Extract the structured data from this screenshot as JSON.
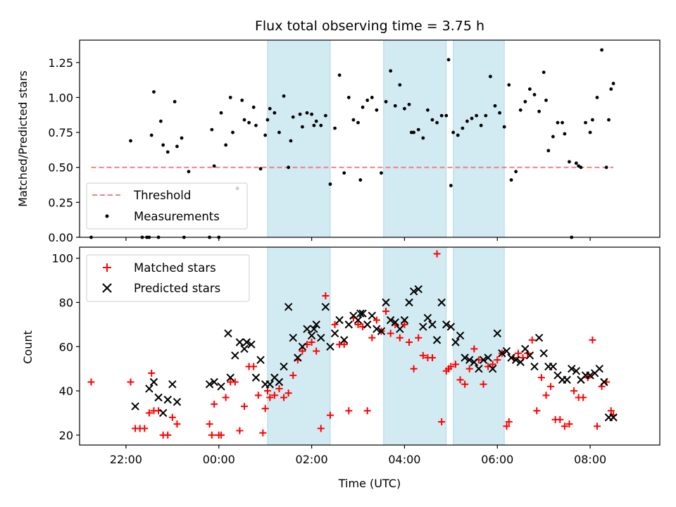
{
  "chart_data": [
    {
      "type": "scatter",
      "title": "Flux total observing time = 3.75 h",
      "xlabel": "",
      "ylabel": "Matched/Predicted stars",
      "xlim": [
        -3.0,
        9.5
      ],
      "ylim": [
        0.0,
        1.41
      ],
      "yticks": [
        0.0,
        0.25,
        0.5,
        0.75,
        1.0,
        1.25
      ],
      "ytick_labels": [
        "0.00",
        "0.25",
        "0.50",
        "0.75",
        "1.00",
        "1.25"
      ],
      "legend": {
        "position": "lower-left",
        "entries": [
          "Threshold",
          "Measurements"
        ]
      },
      "series": [
        {
          "name": "Threshold",
          "style": "dashed-line",
          "color": "#f08080",
          "x": [
            -2.75,
            8.5
          ],
          "values": [
            0.5,
            0.5
          ]
        },
        {
          "name": "Measurements",
          "style": "dot",
          "color": "#000000",
          "x": [
            -2.75,
            -1.9,
            -1.65,
            -1.55,
            -1.5,
            -1.45,
            -1.4,
            -1.3,
            -1.25,
            -1.2,
            -1.1,
            -0.95,
            -0.9,
            -0.8,
            -0.75,
            -0.65,
            -0.2,
            -0.15,
            -0.1,
            0.0,
            0.05,
            0.15,
            0.25,
            0.3,
            0.4,
            0.5,
            0.55,
            0.65,
            0.75,
            0.8,
            0.9,
            1.0,
            1.05,
            1.1,
            1.2,
            1.3,
            1.4,
            1.5,
            1.55,
            1.6,
            1.75,
            1.8,
            1.9,
            2.0,
            2.05,
            2.1,
            2.2,
            2.3,
            2.4,
            2.5,
            2.6,
            2.7,
            2.8,
            2.9,
            3.0,
            3.05,
            3.1,
            3.2,
            3.3,
            3.4,
            3.5,
            3.6,
            3.7,
            3.8,
            3.9,
            4.0,
            4.1,
            4.15,
            4.2,
            4.3,
            4.4,
            4.5,
            4.6,
            4.7,
            4.8,
            4.9,
            4.95,
            5.0,
            5.05,
            5.15,
            5.25,
            5.35,
            5.45,
            5.55,
            5.65,
            5.75,
            5.85,
            5.95,
            6.05,
            6.15,
            6.25,
            6.3,
            6.4,
            6.5,
            6.6,
            6.7,
            6.8,
            6.9,
            7.0,
            7.05,
            7.1,
            7.2,
            7.3,
            7.4,
            7.45,
            7.55,
            7.6,
            7.7,
            7.75,
            7.8,
            7.9,
            8.0,
            8.05,
            8.15,
            8.25,
            8.35,
            8.4,
            8.45,
            8.5
          ],
          "values": [
            0.0,
            0.69,
            0.0,
            0.0,
            0.0,
            0.73,
            1.04,
            0.0,
            0.83,
            0.66,
            0.61,
            0.97,
            0.65,
            0.71,
            0.0,
            0.47,
            0.0,
            0.77,
            0.51,
            0.0,
            0.89,
            0.66,
            1.0,
            0.75,
            0.35,
            0.98,
            0.84,
            0.82,
            0.93,
            0.8,
            0.49,
            0.73,
            0.84,
            0.92,
            0.89,
            0.75,
            1.01,
            0.5,
            0.69,
            0.86,
            0.88,
            0.79,
            0.89,
            0.88,
            0.8,
            0.83,
            0.8,
            0.87,
            0.38,
            0.78,
            1.16,
            0.46,
            1.0,
            0.84,
            0.82,
            0.41,
            0.93,
            0.98,
            1.0,
            0.91,
            0.46,
            0.97,
            1.19,
            0.94,
            1.09,
            0.92,
            0.95,
            0.75,
            0.75,
            0.77,
            0.71,
            0.91,
            0.84,
            0.82,
            0.87,
            0.87,
            1.27,
            0.37,
            0.75,
            0.73,
            0.78,
            0.83,
            0.85,
            0.87,
            0.8,
            0.87,
            1.15,
            0.94,
            0.89,
            0.79,
            1.09,
            0.41,
            0.47,
            0.91,
            0.97,
            1.06,
            1.02,
            0.9,
            1.18,
            0.98,
            0.62,
            0.72,
            0.82,
            0.82,
            0.74,
            0.54,
            0.0,
            0.53,
            0.51,
            0.5,
            0.82,
            0.75,
            0.84,
            1.0,
            1.34,
            0.5,
            0.84,
            1.06,
            1.1
          ]
        }
      ]
    },
    {
      "type": "scatter",
      "title": "",
      "xlabel": "Time (UTC)",
      "ylabel": "Count",
      "xlim": [
        -3.0,
        9.5
      ],
      "ylim": [
        15.5,
        105
      ],
      "xticks": [
        -2.0,
        0.0,
        2.0,
        4.0,
        6.0,
        8.0
      ],
      "xtick_labels": [
        "22:00",
        "00:00",
        "02:00",
        "04:00",
        "06:00",
        "08:00"
      ],
      "yticks": [
        20,
        40,
        60,
        80,
        100
      ],
      "ytick_labels": [
        "20",
        "40",
        "60",
        "80",
        "100"
      ],
      "legend": {
        "position": "top-left",
        "entries": [
          "Matched stars",
          "Predicted stars"
        ]
      },
      "series": [
        {
          "name": "Matched stars",
          "style": "plus",
          "color": "#ff0000",
          "x": [
            -2.75,
            -1.9,
            -1.8,
            -1.7,
            -1.6,
            -1.5,
            -1.45,
            -1.4,
            -1.3,
            -1.2,
            -1.1,
            -1.0,
            -0.9,
            -0.2,
            -0.15,
            -0.1,
            0.0,
            0.05,
            0.15,
            0.25,
            0.35,
            0.45,
            0.55,
            0.65,
            0.75,
            0.85,
            0.95,
            1.0,
            1.05,
            1.1,
            1.2,
            1.3,
            1.4,
            1.5,
            1.6,
            1.7,
            1.8,
            1.9,
            2.0,
            2.1,
            2.2,
            2.3,
            2.4,
            2.5,
            2.6,
            2.7,
            2.8,
            2.9,
            3.0,
            3.1,
            3.2,
            3.3,
            3.4,
            3.5,
            3.6,
            3.7,
            3.8,
            3.9,
            4.0,
            4.1,
            4.2,
            4.3,
            4.4,
            4.5,
            4.6,
            4.7,
            4.8,
            4.9,
            4.95,
            5.0,
            5.1,
            5.2,
            5.3,
            5.4,
            5.5,
            5.6,
            5.7,
            5.8,
            5.9,
            6.0,
            6.1,
            6.2,
            6.25,
            6.35,
            6.45,
            6.55,
            6.65,
            6.75,
            6.85,
            6.95,
            7.05,
            7.15,
            7.25,
            7.35,
            7.45,
            7.55,
            7.65,
            7.75,
            7.85,
            7.95,
            8.05,
            8.15,
            8.25,
            8.35,
            8.45,
            8.5
          ],
          "values": [
            44,
            44,
            23,
            23,
            23,
            30,
            48,
            31,
            31,
            20,
            20,
            28,
            25,
            25,
            20,
            34,
            20,
            20,
            37,
            44,
            44,
            22,
            33,
            51,
            51,
            38,
            21,
            32,
            40,
            37,
            38,
            41,
            37,
            39,
            47,
            54,
            58,
            61,
            62,
            58,
            23,
            83,
            29,
            70,
            61,
            61,
            31,
            73,
            70,
            69,
            31,
            64,
            72,
            67,
            76,
            66,
            70,
            64,
            70,
            62,
            50,
            64,
            56,
            55,
            55,
            102,
            26,
            49,
            50,
            51,
            52,
            45,
            43,
            50,
            59,
            54,
            43,
            51,
            52,
            54,
            57,
            24,
            26,
            55,
            57,
            55,
            57,
            63,
            31,
            46,
            38,
            42,
            27,
            27,
            24,
            25,
            40,
            37,
            37,
            46,
            63,
            24,
            42,
            44,
            31,
            29
          ]
        },
        {
          "name": "Predicted stars",
          "style": "x",
          "color": "#000000",
          "x": [
            -1.8,
            -1.5,
            -1.4,
            -1.3,
            -1.2,
            -1.1,
            -1.0,
            -0.9,
            -0.2,
            -0.1,
            0.05,
            0.2,
            0.25,
            0.35,
            0.45,
            0.55,
            0.6,
            0.7,
            0.8,
            0.9,
            1.0,
            1.1,
            1.2,
            1.3,
            1.4,
            1.5,
            1.6,
            1.7,
            1.8,
            1.9,
            2.0,
            2.05,
            2.1,
            2.2,
            2.3,
            2.4,
            2.5,
            2.6,
            2.7,
            2.8,
            2.9,
            3.0,
            3.05,
            3.1,
            3.2,
            3.3,
            3.4,
            3.5,
            3.6,
            3.7,
            3.8,
            3.9,
            4.0,
            4.1,
            4.2,
            4.3,
            4.4,
            4.5,
            4.6,
            4.7,
            4.8,
            4.9,
            5.0,
            5.1,
            5.2,
            5.3,
            5.4,
            5.5,
            5.6,
            5.7,
            5.8,
            5.9,
            6.0,
            6.1,
            6.2,
            6.3,
            6.4,
            6.5,
            6.6,
            6.7,
            6.8,
            6.9,
            7.0,
            7.1,
            7.2,
            7.3,
            7.4,
            7.5,
            7.6,
            7.7,
            7.8,
            7.9,
            8.0,
            8.1,
            8.2,
            8.3,
            8.4,
            8.5
          ],
          "values": [
            33,
            41,
            44,
            37,
            30,
            36,
            43,
            35,
            43,
            44,
            42,
            66,
            46,
            56,
            62,
            59,
            62,
            61,
            46,
            54,
            43,
            43,
            46,
            44,
            51,
            78,
            64,
            55,
            60,
            68,
            65,
            68,
            70,
            64,
            78,
            60,
            66,
            72,
            63,
            70,
            74,
            72,
            75,
            75,
            70,
            74,
            68,
            67,
            80,
            72,
            71,
            68,
            72,
            80,
            85,
            86,
            69,
            73,
            70,
            63,
            80,
            70,
            69,
            62,
            65,
            55,
            54,
            53,
            50,
            54,
            55,
            50,
            66,
            57,
            58,
            55,
            54,
            53,
            59,
            56,
            51,
            64,
            57,
            51,
            51,
            47,
            45,
            45,
            50,
            49,
            45,
            47,
            47,
            48,
            50,
            44,
            28,
            28
          ]
        }
      ],
      "shaded_regions": [
        [
          1.05,
          2.4
        ],
        [
          3.55,
          4.9
        ],
        [
          5.05,
          6.15
        ]
      ]
    }
  ],
  "colors": {
    "shade": "#add8e6",
    "threshold": "#f08080",
    "matched": "#ff0000",
    "predicted": "#000000"
  }
}
